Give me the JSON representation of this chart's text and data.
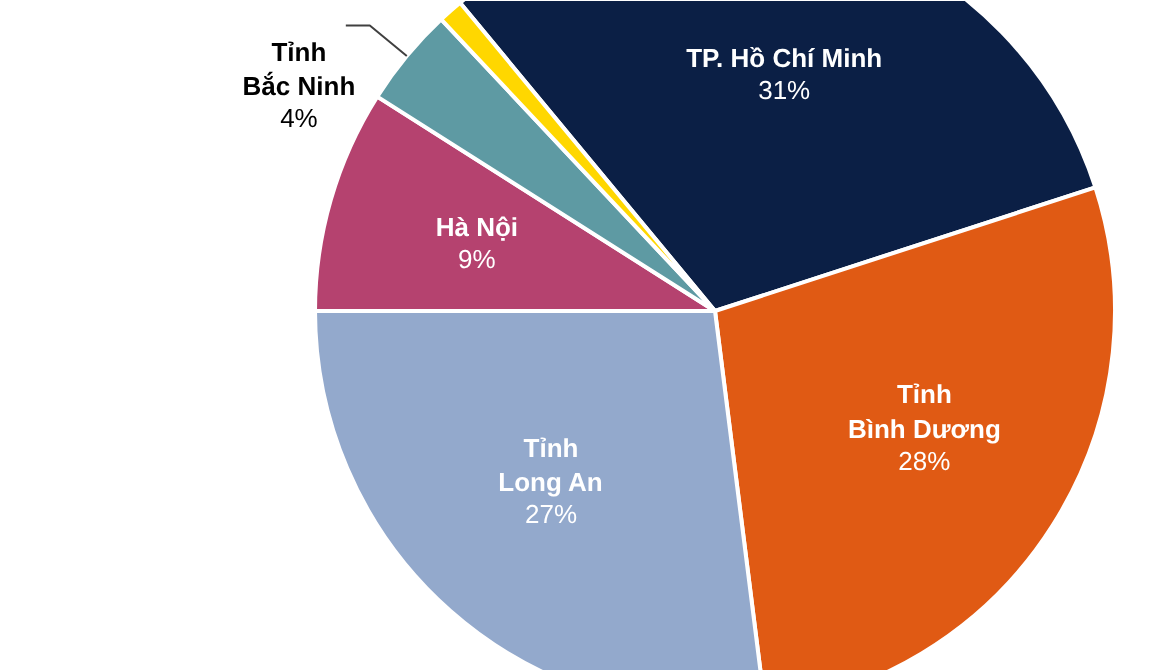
{
  "chart_data": {
    "type": "pie",
    "categories": [
      "TP. Hồ Chí Minh",
      "Tỉnh\nBình Dương",
      "Tỉnh\nLong An",
      "Hà Nội",
      "Tỉnh\nBắc Ninh",
      null
    ],
    "values": [
      31,
      28,
      27,
      9,
      4,
      1
    ],
    "value_labels": [
      "31%",
      "28%",
      "27%",
      "9%",
      "4%",
      null
    ],
    "colors": [
      "#0b1f45",
      "#e05a14",
      "#93a9cc",
      "#b5426f",
      "#5e9aa3",
      "#ffd700"
    ]
  }
}
